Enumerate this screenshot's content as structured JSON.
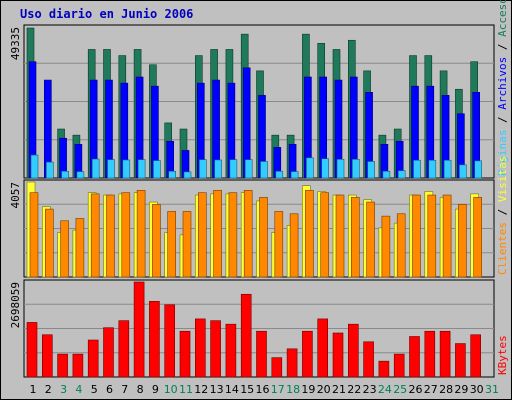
{
  "window": {
    "title": "Uso diario en Junio 2006"
  },
  "colors": {
    "background": "#c0c0c0",
    "title": "#0000c0",
    "accesos": "#1e7a5a",
    "archivos": "#0000ff",
    "paginas": "#33ccff",
    "visitas": "#ffff33",
    "clientes": "#ff8800",
    "kbytes": "#ff0000",
    "grid": "#8a8a8a",
    "weekend_label": "#00805a",
    "weekday_label": "#000000"
  },
  "chart_data": [
    {
      "type": "bar",
      "panel": "top",
      "y_max_label": "49335",
      "ylim": [
        0,
        49335
      ],
      "right_labels": [
        {
          "text": "Páginas",
          "color": "#33ccff"
        },
        {
          "text": " / ",
          "color": "#000000"
        },
        {
          "text": "Archivos",
          "color": "#0000ff"
        },
        {
          "text": " / ",
          "color": "#000000"
        },
        {
          "text": "Accesos",
          "color": "#1e7a5a"
        }
      ],
      "categories": [
        "1",
        "2",
        "3",
        "4",
        "5",
        "6",
        "7",
        "8",
        "9",
        "10",
        "11",
        "12",
        "13",
        "14",
        "15",
        "16",
        "17",
        "18",
        "19",
        "20",
        "21",
        "22",
        "23",
        "24",
        "25",
        "26",
        "27",
        "28",
        "29",
        "30",
        "31"
      ],
      "series": [
        {
          "name": "Accesos",
          "values": [
            49000,
            0,
            16000,
            14000,
            42000,
            42000,
            40000,
            42000,
            37000,
            18000,
            16000,
            40000,
            42000,
            42000,
            47000,
            35000,
            14000,
            14000,
            47000,
            44000,
            42000,
            45000,
            35000,
            14000,
            16000,
            40000,
            40000,
            35000,
            29000,
            38000,
            0
          ]
        },
        {
          "name": "Archivos",
          "values": [
            38000,
            32000,
            13000,
            11000,
            32000,
            32000,
            31000,
            33000,
            30000,
            12000,
            9000,
            31000,
            32000,
            31000,
            36000,
            27000,
            10000,
            11000,
            33000,
            33000,
            32000,
            33000,
            28000,
            11000,
            12000,
            30000,
            30000,
            27000,
            21000,
            28000,
            0
          ]
        },
        {
          "name": "Páginas",
          "values": [
            7500,
            5200,
            2200,
            2100,
            6200,
            6000,
            5900,
            6000,
            5700,
            2200,
            2000,
            6000,
            5900,
            6000,
            6000,
            5400,
            2200,
            2100,
            6600,
            6300,
            6100,
            6100,
            5400,
            2200,
            2400,
            5800,
            5800,
            5800,
            4300,
            5600,
            0
          ]
        }
      ]
    },
    {
      "type": "bar",
      "panel": "middle",
      "y_max_label": "4057",
      "right_labels": [
        {
          "text": "Clientes",
          "color": "#ff8800"
        },
        {
          "text": " / ",
          "color": "#000000"
        },
        {
          "text": "Visitas",
          "color": "#ffff33"
        }
      ],
      "categories": [
        "1",
        "2",
        "3",
        "4",
        "5",
        "6",
        "7",
        "8",
        "9",
        "10",
        "11",
        "12",
        "13",
        "14",
        "15",
        "16",
        "17",
        "18",
        "19",
        "20",
        "21",
        "22",
        "23",
        "24",
        "25",
        "26",
        "27",
        "28",
        "29",
        "30",
        "31"
      ],
      "series": [
        {
          "name": "Visitas",
          "values": [
            4057,
            3000,
            1900,
            2000,
            3600,
            3500,
            3550,
            3600,
            3200,
            1900,
            1800,
            3500,
            3550,
            3550,
            3600,
            3250,
            1900,
            2200,
            3900,
            3650,
            3500,
            3500,
            3300,
            2100,
            2300,
            3500,
            3650,
            3400,
            2900,
            3550,
            0
          ]
        },
        {
          "name": "Clientes",
          "values": [
            3600,
            2900,
            2400,
            2500,
            3550,
            3500,
            3600,
            3700,
            3100,
            2800,
            2800,
            3600,
            3700,
            3600,
            3700,
            3400,
            2800,
            2700,
            3700,
            3600,
            3500,
            3400,
            3200,
            2600,
            2700,
            3500,
            3500,
            3500,
            3100,
            3400,
            0
          ]
        }
      ]
    },
    {
      "type": "bar",
      "panel": "bottom",
      "y_max_label": "2698059",
      "right_labels": [
        {
          "text": "KBytes",
          "color": "#ff0000"
        }
      ],
      "categories": [
        "1",
        "2",
        "3",
        "4",
        "5",
        "6",
        "7",
        "8",
        "9",
        "10",
        "11",
        "12",
        "13",
        "14",
        "15",
        "16",
        "17",
        "18",
        "19",
        "20",
        "21",
        "22",
        "23",
        "24",
        "25",
        "26",
        "27",
        "28",
        "29",
        "30",
        "31"
      ],
      "series": [
        {
          "name": "KBytes",
          "values": [
            1550000,
            1200000,
            650000,
            650000,
            1050000,
            1400000,
            1600000,
            2698059,
            2150000,
            2050000,
            1300000,
            1650000,
            1600000,
            1500000,
            2350000,
            1300000,
            550000,
            800000,
            1300000,
            1650000,
            1250000,
            1500000,
            1000000,
            450000,
            650000,
            1150000,
            1300000,
            1300000,
            950000,
            1200000,
            0
          ]
        }
      ]
    }
  ],
  "x_axis": {
    "labels": [
      "1",
      "2",
      "3",
      "4",
      "5",
      "6",
      "7",
      "8",
      "9",
      "10",
      "11",
      "12",
      "13",
      "14",
      "15",
      "16",
      "17",
      "18",
      "19",
      "20",
      "21",
      "22",
      "23",
      "24",
      "25",
      "26",
      "27",
      "28",
      "29",
      "30",
      "31"
    ],
    "weekend": [
      false,
      false,
      true,
      true,
      false,
      false,
      false,
      false,
      false,
      true,
      true,
      false,
      false,
      false,
      false,
      false,
      true,
      true,
      false,
      false,
      false,
      false,
      false,
      true,
      true,
      false,
      false,
      false,
      false,
      false,
      true
    ]
  }
}
